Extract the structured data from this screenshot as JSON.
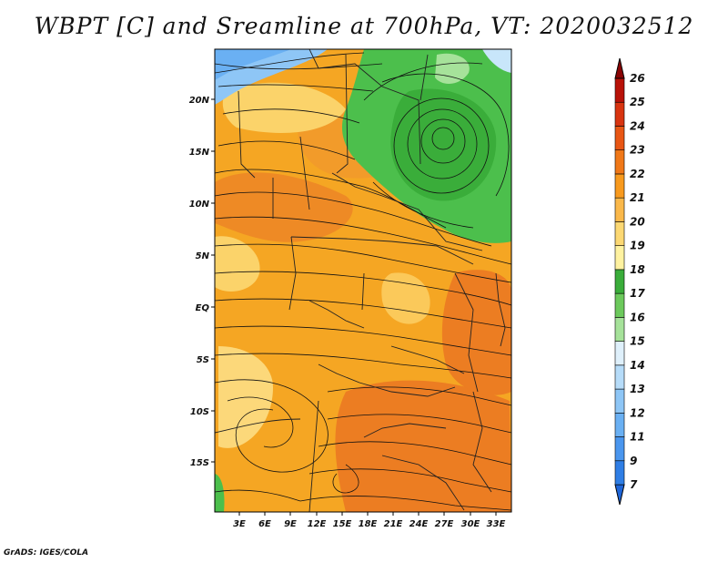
{
  "title": "WBPT [C] and Sreamline at 700hPa, VT: 2020032512",
  "credit": "GrADS: IGES/COLA",
  "lat_labels": [
    "20N",
    "15N",
    "10N",
    "5N",
    "EQ",
    "5S",
    "10S",
    "15S"
  ],
  "lon_labels": [
    "3E",
    "6E",
    "9E",
    "12E",
    "15E",
    "18E",
    "21E",
    "24E",
    "27E",
    "30E",
    "33E"
  ],
  "colorbar": {
    "labels": [
      "7",
      "9",
      "11",
      "12",
      "13",
      "14",
      "15",
      "16",
      "17",
      "18",
      "19",
      "20",
      "21",
      "22",
      "23",
      "24",
      "25",
      "26"
    ],
    "colors": [
      "#1f66d9",
      "#2f7ee5",
      "#4a96ee",
      "#6ab0f3",
      "#8ec6f6",
      "#b6dcf9",
      "#dff0fb",
      "#a6e29a",
      "#6cc95c",
      "#3aad3a",
      "#fff2a0",
      "#fcd873",
      "#fab84a",
      "#f89a1e",
      "#f07818",
      "#e85614",
      "#d83410",
      "#b81208",
      "#8a0404"
    ]
  },
  "map_colors": {
    "warm": "#f5a623",
    "hot": "#ee7e1e",
    "pale": "#fbd36a",
    "green": "#4cbf4c",
    "green_dark": "#2e9e36",
    "blue": "#8ec6f6",
    "blue_light": "#c8e6fa"
  }
}
